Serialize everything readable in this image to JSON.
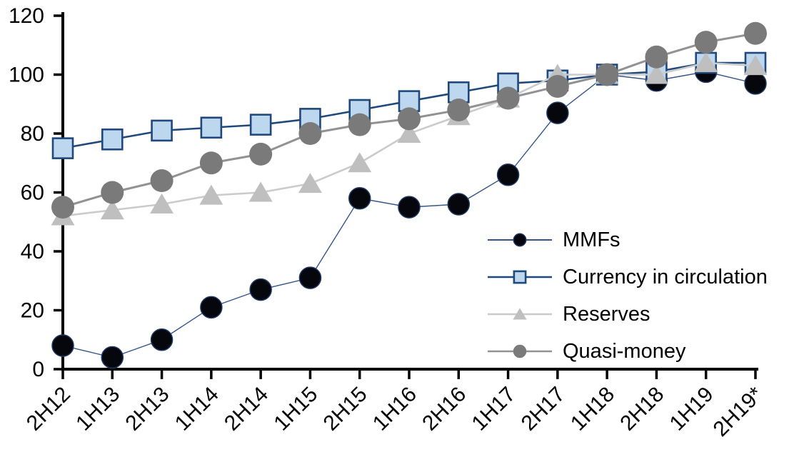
{
  "chart_data": {
    "type": "line",
    "title": "",
    "xlabel": "",
    "ylabel": "",
    "grid": false,
    "legend_position": "inside-right",
    "ylim": [
      0,
      120
    ],
    "ytick_interval": 20,
    "ytick_labels": [
      "0",
      "20",
      "40",
      "60",
      "80",
      "100",
      "120"
    ],
    "axis_color": "#000000",
    "categories": [
      "2H12",
      "1H13",
      "2H13",
      "1H14",
      "2H14",
      "1H15",
      "2H15",
      "1H16",
      "2H16",
      "1H17",
      "2H17",
      "1H18",
      "2H18",
      "1H19",
      "2H19*"
    ],
    "series": [
      {
        "name": "MMFs",
        "marker": "circle",
        "line_color": "#35568A",
        "marker_fill": "#06070D",
        "marker_stroke": "#1F3864",
        "values": [
          8,
          4,
          10,
          21,
          27,
          31,
          58,
          55,
          56,
          66,
          87,
          100,
          98,
          101,
          97
        ]
      },
      {
        "name": "Currency in circulation",
        "marker": "square",
        "line_color": "#1F497D",
        "marker_fill": "#BDD7EE",
        "marker_stroke": "#1F497D",
        "values": [
          75,
          78,
          81,
          82,
          83,
          85,
          88,
          91,
          94,
          97,
          98,
          100,
          101,
          104,
          104
        ]
      },
      {
        "name": "Reserves",
        "marker": "triangle",
        "line_color": "#CBCBCB",
        "marker_fill": "#BFBFBF",
        "marker_stroke": "none",
        "values": [
          52,
          54,
          56,
          59,
          60,
          63,
          70,
          80,
          86,
          92,
          100,
          100,
          100,
          104,
          103
        ]
      },
      {
        "name": "Quasi-money",
        "marker": "circle",
        "line_color": "#929292",
        "marker_fill": "#7A7A7A",
        "marker_stroke": "none",
        "values": [
          55,
          60,
          64,
          70,
          73,
          80,
          83,
          85,
          88,
          92,
          96,
          100,
          106,
          111,
          114
        ]
      }
    ]
  }
}
